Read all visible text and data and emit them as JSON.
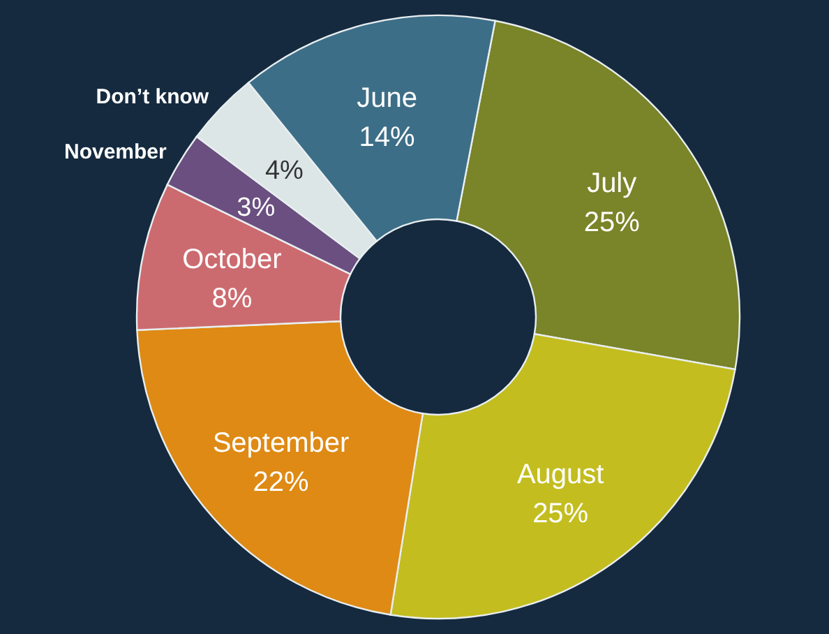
{
  "chart_data": {
    "type": "donut",
    "categories": [
      "July",
      "August",
      "September",
      "October",
      "November",
      "Don’t know",
      "June"
    ],
    "values": [
      25,
      25,
      22,
      8,
      3,
      4,
      14
    ],
    "value_labels": [
      "25%",
      "25%",
      "22%",
      "8%",
      "3%",
      "4%",
      "14%"
    ],
    "colors": [
      "#7a8428",
      "#c3bd1f",
      "#de8a14",
      "#cc6b6f",
      "#6a4f80",
      "#dce6e6",
      "#3d6e87"
    ]
  }
}
